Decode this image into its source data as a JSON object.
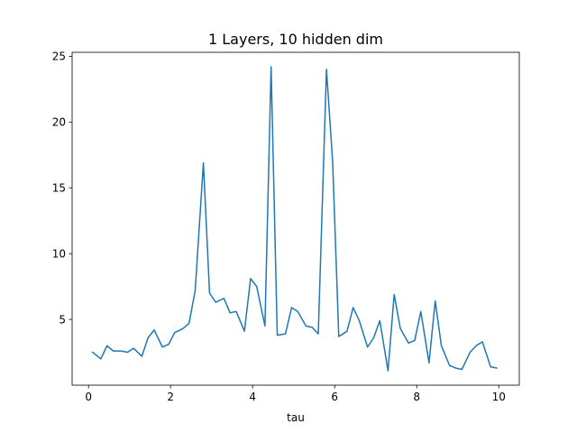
{
  "chart_data": {
    "type": "line",
    "title": "1 Layers, 10 hidden dim",
    "xlabel": "tau",
    "ylabel": "",
    "xlim": [
      -0.4,
      10.5
    ],
    "ylim": [
      0.0,
      25.3
    ],
    "xticks": [
      0,
      2,
      4,
      6,
      8,
      10
    ],
    "xtick_labels": [
      "0",
      "2",
      "4",
      "6",
      "8",
      "10"
    ],
    "yticks": [
      5,
      10,
      15,
      20,
      25
    ],
    "ytick_labels": [
      "5",
      "10",
      "15",
      "20",
      "25"
    ],
    "grid": false,
    "legend": "none",
    "line_color": "#1f77b4",
    "series": [
      {
        "x": [
          0.1,
          0.3,
          0.45,
          0.6,
          0.8,
          0.95,
          1.1,
          1.3,
          1.45,
          1.6,
          1.8,
          1.95,
          2.1,
          2.3,
          2.45,
          2.6,
          2.8,
          2.95,
          3.1,
          3.3,
          3.45,
          3.6,
          3.8,
          3.95,
          4.1,
          4.3,
          4.45,
          4.6,
          4.8,
          4.95,
          5.1,
          5.3,
          5.45,
          5.6,
          5.8,
          5.95,
          6.1,
          6.3,
          6.45,
          6.6,
          6.8,
          6.95,
          7.1,
          7.3,
          7.45,
          7.6,
          7.8,
          7.95,
          8.1,
          8.3,
          8.45,
          8.6,
          8.8,
          8.95,
          9.1,
          9.3,
          9.45,
          9.6,
          9.8,
          9.95
        ],
        "y": [
          2.5,
          2.0,
          3.0,
          2.6,
          2.6,
          2.5,
          2.8,
          2.2,
          3.6,
          4.2,
          2.9,
          3.1,
          4.0,
          4.3,
          4.7,
          7.2,
          16.9,
          7.0,
          6.3,
          6.6,
          5.5,
          5.6,
          4.1,
          8.1,
          7.5,
          4.5,
          24.2,
          3.8,
          3.9,
          5.9,
          5.6,
          4.5,
          4.4,
          3.9,
          24.0,
          17.0,
          3.7,
          4.1,
          5.9,
          4.9,
          2.9,
          3.6,
          4.9,
          1.1,
          6.9,
          4.3,
          3.2,
          3.4,
          5.6,
          1.7,
          6.4,
          3.0,
          1.5,
          1.3,
          1.2,
          2.5,
          3.0,
          3.3,
          1.4,
          1.3
        ]
      }
    ]
  }
}
